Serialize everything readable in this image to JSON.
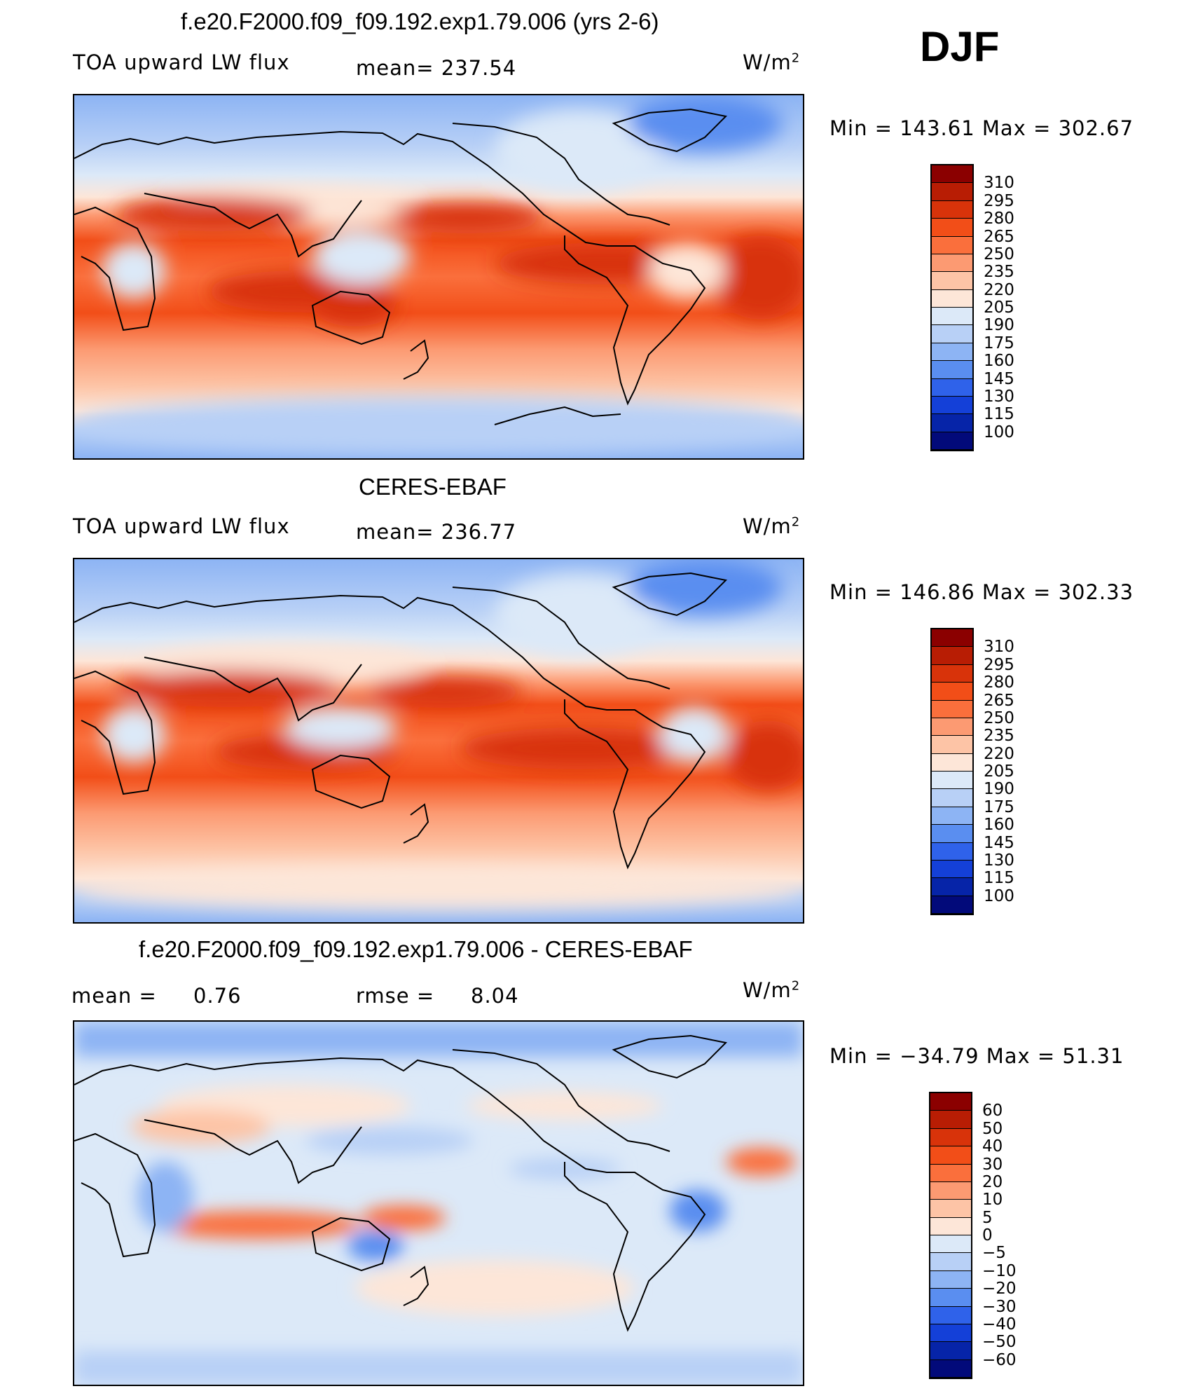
{
  "season": "DJF",
  "panels": [
    {
      "title": "f.e20.F2000.f09_f09.192.exp1.79.006 (yrs 2-6)",
      "left_label": "TOA upward LW flux",
      "mean_label": "mean=",
      "mean_value": "237.54",
      "units": "W/m",
      "units_sup": "2",
      "minmax": "Min  =  143.61  Max  =  302.67"
    },
    {
      "title": "CERES-EBAF",
      "left_label": "TOA upward LW flux",
      "mean_label": "mean=",
      "mean_value": "236.77",
      "units": "W/m",
      "units_sup": "2",
      "minmax": "Min  =  146.86  Max  =  302.33"
    },
    {
      "title": "f.e20.F2000.f09_f09.192.exp1.79.006 - CERES-EBAF",
      "left_label": "mean  =",
      "left_value": "0.76",
      "rmse_label": "rmse  =",
      "rmse_value": "8.04",
      "units": "W/m",
      "units_sup": "2",
      "minmax": "Min  =  −34.79  Max  =   51.31"
    }
  ],
  "colorbars": [
    {
      "labels": [
        "310",
        "295",
        "280",
        "265",
        "250",
        "235",
        "220",
        "205",
        "190",
        "175",
        "160",
        "145",
        "130",
        "115",
        "100"
      ],
      "colors": [
        "#8b0000",
        "#b81d04",
        "#d8330a",
        "#f24e18",
        "#fa6f3c",
        "#fc9a72",
        "#fdc4a6",
        "#fde6d8",
        "#dce9f8",
        "#b8d0f6",
        "#8db4f4",
        "#5a8ef0",
        "#2f62ea",
        "#1440d8",
        "#0624a8",
        "#020a7a"
      ]
    },
    {
      "labels": [
        "310",
        "295",
        "280",
        "265",
        "250",
        "235",
        "220",
        "205",
        "190",
        "175",
        "160",
        "145",
        "130",
        "115",
        "100"
      ],
      "colors": [
        "#8b0000",
        "#b81d04",
        "#d8330a",
        "#f24e18",
        "#fa6f3c",
        "#fc9a72",
        "#fdc4a6",
        "#fde6d8",
        "#dce9f8",
        "#b8d0f6",
        "#8db4f4",
        "#5a8ef0",
        "#2f62ea",
        "#1440d8",
        "#0624a8",
        "#020a7a"
      ]
    },
    {
      "labels": [
        "60",
        "50",
        "40",
        "30",
        "20",
        "10",
        "5",
        "0",
        "−5",
        "−10",
        "−20",
        "−30",
        "−40",
        "−50",
        "−60"
      ],
      "colors": [
        "#8b0000",
        "#b81d04",
        "#d8330a",
        "#f24e18",
        "#fa6f3c",
        "#fc9a72",
        "#fdc4a6",
        "#fde6d8",
        "#dce9f8",
        "#b8d0f6",
        "#8db4f4",
        "#5a8ef0",
        "#2f62ea",
        "#1440d8",
        "#0624a8",
        "#020a7a"
      ]
    }
  ]
}
